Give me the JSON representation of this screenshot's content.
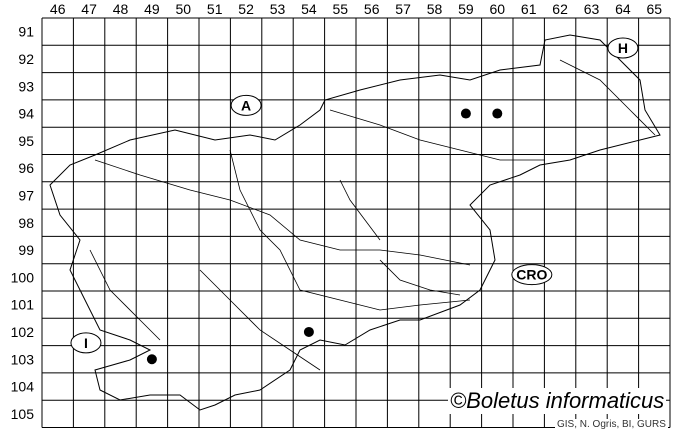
{
  "map": {
    "column_labels": [
      "46",
      "47",
      "48",
      "49",
      "50",
      "51",
      "52",
      "53",
      "54",
      "55",
      "56",
      "57",
      "58",
      "59",
      "60",
      "61",
      "62",
      "63",
      "64",
      "65"
    ],
    "row_labels": [
      "91",
      "92",
      "93",
      "94",
      "95",
      "96",
      "97",
      "98",
      "99",
      "100",
      "101",
      "102",
      "103",
      "104",
      "105"
    ],
    "country_labels": [
      {
        "text": "A",
        "col": 52.5,
        "row": 94.2
      },
      {
        "text": "H",
        "col": 64.5,
        "row": 92.1
      },
      {
        "text": "CRO",
        "col": 61.6,
        "row": 100.4
      },
      {
        "text": "I",
        "col": 47.4,
        "row": 102.9
      }
    ],
    "records": [
      {
        "col": 59,
        "row": 94
      },
      {
        "col": 60,
        "row": 94
      },
      {
        "col": 54,
        "row": 102
      },
      {
        "col": 49,
        "row": 103
      }
    ],
    "dot_color": "#000000",
    "line_color": "#000000"
  },
  "credit": "©Boletus informaticus",
  "source": "GIS, N. Ogris, BI, GURS"
}
